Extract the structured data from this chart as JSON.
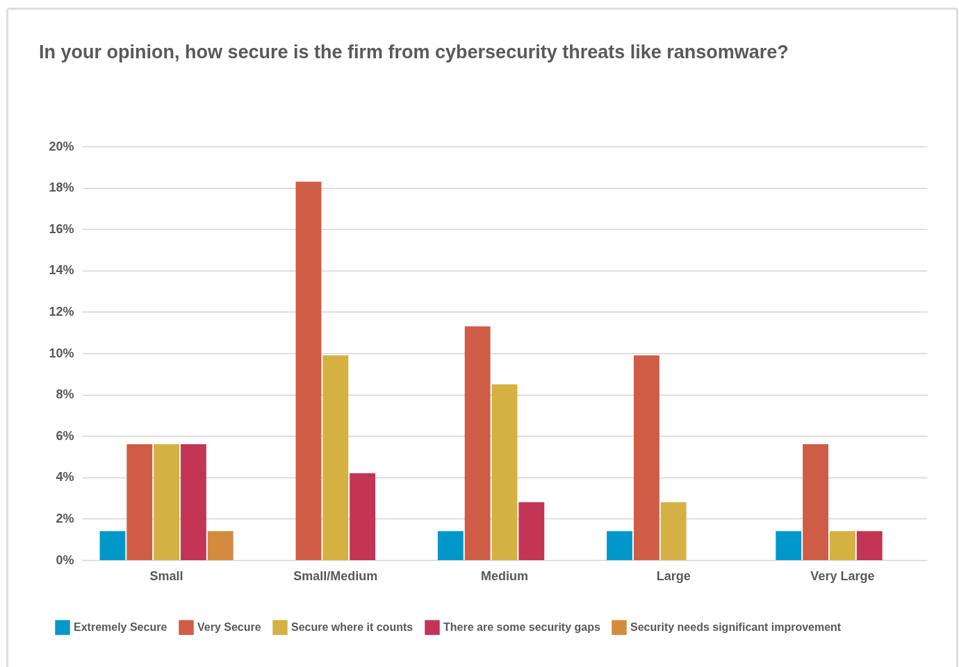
{
  "chart_data": {
    "type": "bar",
    "title": "In your opinion, how secure is the firm from cybersecurity threats like ransomware?",
    "categories": [
      "Small",
      "Small/Medium",
      "Medium",
      "Large",
      "Very Large"
    ],
    "series": [
      {
        "name": "Extremely Secure",
        "color": "#0097c9",
        "values": [
          1.4,
          0,
          1.4,
          1.4,
          1.4
        ]
      },
      {
        "name": "Very Secure",
        "color": "#cf5c45",
        "values": [
          5.6,
          18.3,
          11.3,
          9.9,
          5.6
        ]
      },
      {
        "name": "Secure where it counts",
        "color": "#d4b142",
        "values": [
          5.6,
          9.9,
          8.5,
          2.8,
          1.4
        ]
      },
      {
        "name": "There are some security gaps",
        "color": "#c33455",
        "values": [
          5.6,
          4.2,
          2.8,
          0,
          1.4
        ]
      },
      {
        "name": "Security needs significant improvement",
        "color": "#d48b3e",
        "values": [
          1.4,
          0,
          0,
          0,
          0
        ]
      }
    ],
    "ylim": [
      0,
      20
    ],
    "yticks": [
      {
        "value": 0,
        "label": "0%"
      },
      {
        "value": 2,
        "label": "2%"
      },
      {
        "value": 4,
        "label": "4%"
      },
      {
        "value": 6,
        "label": "6%"
      },
      {
        "value": 8,
        "label": "8%"
      },
      {
        "value": 10,
        "label": "10%"
      },
      {
        "value": 12,
        "label": "12%"
      },
      {
        "value": 14,
        "label": "14%"
      },
      {
        "value": 16,
        "label": "16%"
      },
      {
        "value": 18,
        "label": "18%"
      },
      {
        "value": 20,
        "label": "20%"
      }
    ],
    "grid": "y",
    "legend": "bottom"
  }
}
